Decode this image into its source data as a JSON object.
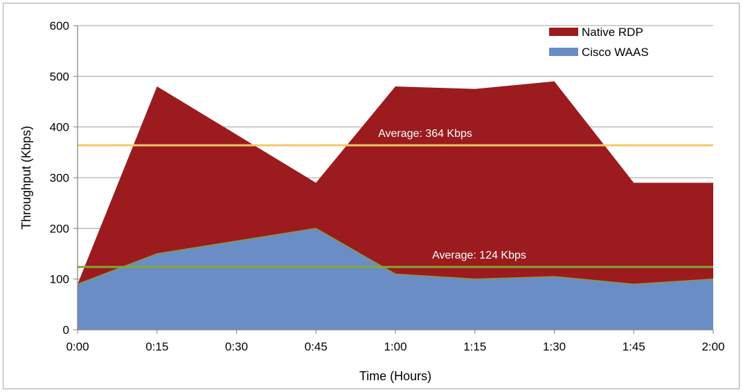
{
  "chart_data": {
    "type": "area",
    "xlabel": "Time (Hours)",
    "ylabel": "Throughput (Kbps)",
    "ylim": [
      0,
      600
    ],
    "yticks": [
      0,
      100,
      200,
      300,
      400,
      500,
      600
    ],
    "categories": [
      "0:00",
      "0:15",
      "0:30",
      "0:45",
      "1:00",
      "1:15",
      "1:30",
      "1:45",
      "2:00"
    ],
    "series": [
      {
        "name": "Native RDP",
        "color": "#9b1b1e",
        "values": [
          90,
          480,
          385,
          290,
          480,
          475,
          490,
          290,
          290
        ]
      },
      {
        "name": "Cisco WAAS",
        "color": "#6a8dc5",
        "values": [
          90,
          150,
          175,
          200,
          110,
          100,
          105,
          90,
          100
        ]
      }
    ],
    "reference_lines": [
      {
        "label": "Average: 364 Kbps",
        "value": 364,
        "color": "#f5c86a"
      },
      {
        "label": "Average: 124 Kbps",
        "value": 124,
        "color": "#86a830"
      }
    ],
    "legend_position": "top-right",
    "grid": true
  }
}
